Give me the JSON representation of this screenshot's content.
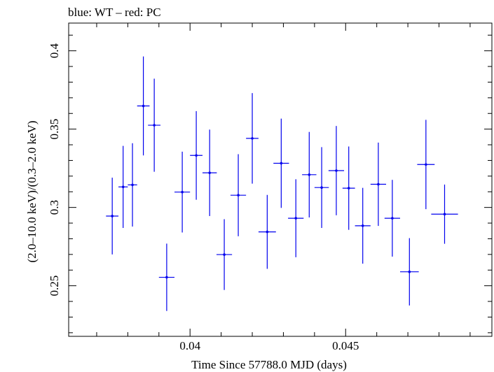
{
  "chart_data": {
    "type": "scatter",
    "title": "blue: WT – red: PC",
    "xlabel": "Time Since 57788.0 MJD (days)",
    "ylabel": "(2.0–10.0 keV)/(0.3–2.0 keV)",
    "xlim": [
      0.0361,
      0.0497
    ],
    "ylim": [
      0.2177,
      0.4177
    ],
    "x_ticks": [
      0.04,
      0.045
    ],
    "x_tick_labels": [
      "0.04",
      "0.045"
    ],
    "y_ticks": [
      0.25,
      0.3,
      0.35,
      0.4
    ],
    "y_tick_labels": [
      "0.25",
      "0.3",
      "0.35",
      "0.4"
    ],
    "grid": false,
    "series": [
      {
        "color": "#0000ee",
        "points": [
          {
            "x": 0.0375,
            "xerr": 0.0002,
            "y": 0.2945,
            "yerr": 0.0245
          },
          {
            "x": 0.03785,
            "xerr": 0.00015,
            "y": 0.3131,
            "yerr": 0.0262
          },
          {
            "x": 0.03815,
            "xerr": 0.00015,
            "y": 0.3144,
            "yerr": 0.0266
          },
          {
            "x": 0.0385,
            "xerr": 0.0002,
            "y": 0.3648,
            "yerr": 0.0316
          },
          {
            "x": 0.03885,
            "xerr": 0.0002,
            "y": 0.3525,
            "yerr": 0.0297
          },
          {
            "x": 0.03925,
            "xerr": 0.00025,
            "y": 0.2554,
            "yerr": 0.0215
          },
          {
            "x": 0.03975,
            "xerr": 0.00025,
            "y": 0.3098,
            "yerr": 0.0258
          },
          {
            "x": 0.0402,
            "xerr": 0.0002,
            "y": 0.3332,
            "yerr": 0.0283
          },
          {
            "x": 0.04063,
            "xerr": 0.00023,
            "y": 0.3221,
            "yerr": 0.0276
          },
          {
            "x": 0.0411,
            "xerr": 0.00025,
            "y": 0.2699,
            "yerr": 0.0226
          },
          {
            "x": 0.04155,
            "xerr": 0.00025,
            "y": 0.3078,
            "yerr": 0.0262
          },
          {
            "x": 0.042,
            "xerr": 0.0002,
            "y": 0.3441,
            "yerr": 0.0289
          },
          {
            "x": 0.04248,
            "xerr": 0.00028,
            "y": 0.2844,
            "yerr": 0.0236
          },
          {
            "x": 0.04293,
            "xerr": 0.00025,
            "y": 0.3282,
            "yerr": 0.0285
          },
          {
            "x": 0.0434,
            "xerr": 0.00025,
            "y": 0.2931,
            "yerr": 0.0249
          },
          {
            "x": 0.04383,
            "xerr": 0.00023,
            "y": 0.3209,
            "yerr": 0.0273
          },
          {
            "x": 0.04423,
            "xerr": 0.00023,
            "y": 0.3127,
            "yerr": 0.0258
          },
          {
            "x": 0.0447,
            "xerr": 0.00025,
            "y": 0.3235,
            "yerr": 0.0285
          },
          {
            "x": 0.0451,
            "xerr": 0.0002,
            "y": 0.3123,
            "yerr": 0.0266
          },
          {
            "x": 0.04555,
            "xerr": 0.00025,
            "y": 0.2883,
            "yerr": 0.0242
          },
          {
            "x": 0.04605,
            "xerr": 0.00025,
            "y": 0.3148,
            "yerr": 0.0266
          },
          {
            "x": 0.0465,
            "xerr": 0.00025,
            "y": 0.2931,
            "yerr": 0.0245
          },
          {
            "x": 0.04705,
            "xerr": 0.0003,
            "y": 0.2589,
            "yerr": 0.0215
          },
          {
            "x": 0.04758,
            "xerr": 0.00028,
            "y": 0.3274,
            "yerr": 0.0285
          },
          {
            "x": 0.04818,
            "xerr": 0.00043,
            "y": 0.2957,
            "yerr": 0.0189
          }
        ]
      }
    ]
  }
}
